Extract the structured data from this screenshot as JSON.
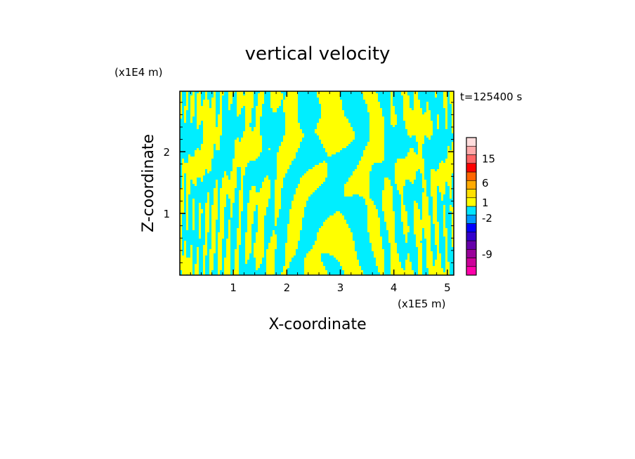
{
  "chart_data": {
    "type": "heatmap",
    "title": "vertical velocity",
    "xlabel": "X-coordinate",
    "ylabel": "Z-coordinate",
    "x_unit": "(x1E5 m)",
    "y_unit": "(x1E4 m)",
    "time_label": "t=125400 s",
    "xlim": [
      0,
      5.12
    ],
    "ylim": [
      0,
      2.98
    ],
    "x_ticks": [
      "1",
      "2",
      "3",
      "4",
      "5"
    ],
    "y_ticks": [
      "1",
      "2"
    ],
    "colorbar": {
      "tick_labels": [
        "15",
        "6",
        "1",
        "-2",
        "-9"
      ],
      "colors": [
        "#ff00aa",
        "#cc0099",
        "#990099",
        "#6600aa",
        "#3300cc",
        "#0000ff",
        "#0099ff",
        "#00e5ff",
        "#ffff00",
        "#ffe000",
        "#ffaa00",
        "#ff6600",
        "#ff0000",
        "#ff6666",
        "#ffaaaa",
        "#ffdddd"
      ]
    },
    "field_colors": {
      "positive": "#ffff00",
      "negative": "#00eeff"
    }
  }
}
